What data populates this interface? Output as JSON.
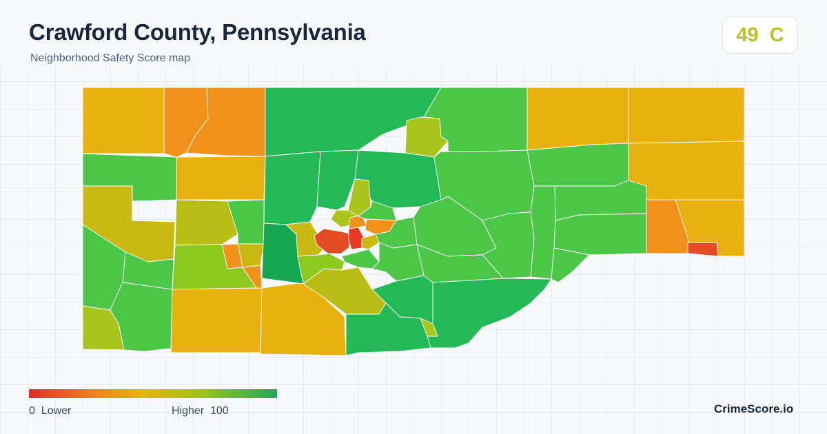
{
  "header": {
    "title": "Crawford County, Pennsylvania",
    "subtitle": "Neighborhood Safety Score map"
  },
  "score": {
    "value": "49",
    "grade": "C",
    "color": "#bdbf1e"
  },
  "legend": {
    "min": "0",
    "min_label": "Lower",
    "max_label": "Higher",
    "max": "100",
    "colors": [
      "#e02f22",
      "#f07d1e",
      "#e8b40e",
      "#9cc41a",
      "#1fa85a"
    ]
  },
  "brand": {
    "name": "CrimeScore.io"
  },
  "palette": {
    "red": "#e24b24",
    "orange": "#f0921a",
    "amber": "#e8b10f",
    "olive": "#c9b913",
    "yellow_green": "#a9c41d",
    "lime": "#8cc91e",
    "green": "#4cc646",
    "emerald": "#22b956",
    "deep_green": "#16a851"
  }
}
